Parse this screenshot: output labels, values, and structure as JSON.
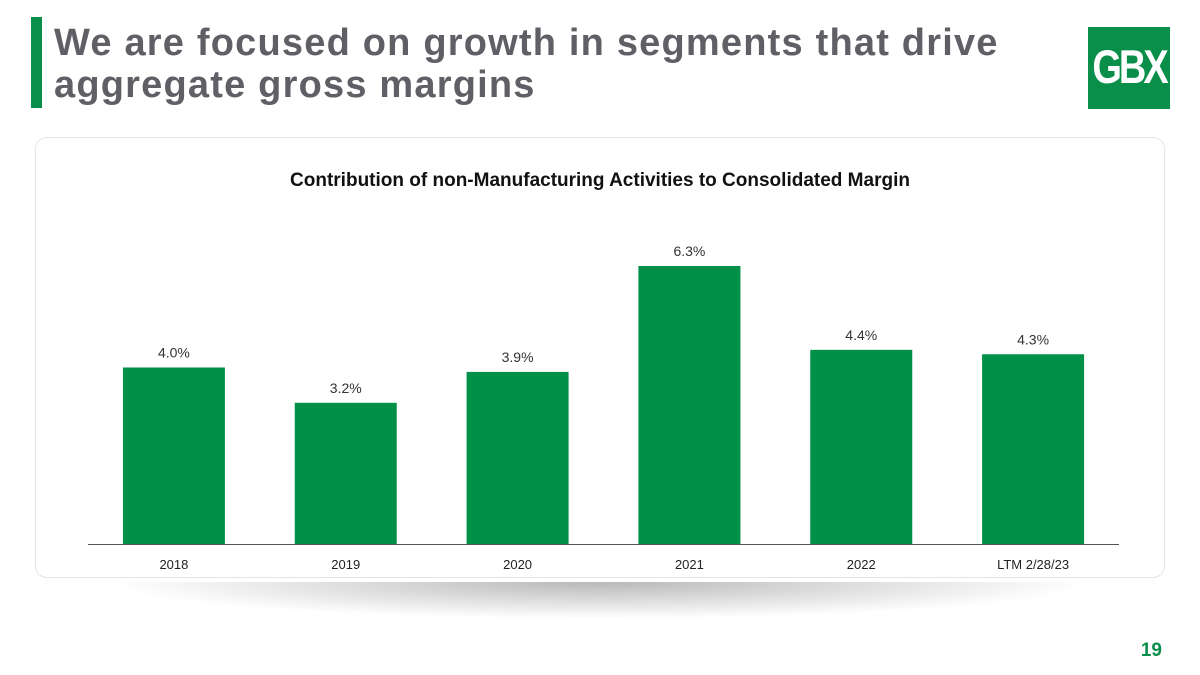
{
  "slide": {
    "title_line1": "We are focused on growth in segments that drive",
    "title_line2": "aggregate gross margins",
    "logo_text": "GBX",
    "page_number": "19"
  },
  "colors": {
    "accent": "#0a8f4a",
    "title": "#5f5f66",
    "bar": "#009048"
  },
  "chart_data": {
    "type": "bar",
    "title": "Contribution of non-Manufacturing Activities to Consolidated Margin",
    "categories": [
      "2018",
      "2019",
      "2020",
      "2021",
      "2022",
      "LTM 2/28/23"
    ],
    "values": [
      4.0,
      3.2,
      3.9,
      6.3,
      4.4,
      4.3
    ],
    "data_labels": [
      "4.0%",
      "3.2%",
      "3.9%",
      "6.3%",
      "4.4%",
      "4.3%"
    ],
    "xlabel": "",
    "ylabel": "",
    "ylim": [
      0,
      6.3
    ],
    "grid": false,
    "legend": "none"
  }
}
